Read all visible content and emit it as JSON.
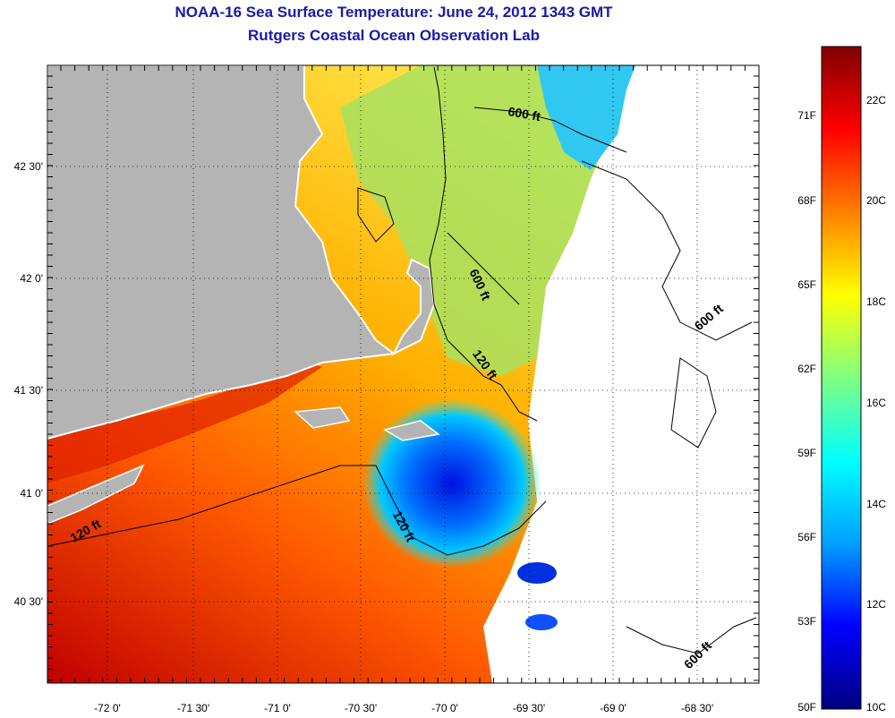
{
  "title_line1": "NOAA-16 Sea Surface Temperature:  June 24, 2012 1343 GMT",
  "title_line2": "Rutgers Coastal Ocean Observation Lab",
  "map": {
    "lon_ticks": [
      "-72 0'",
      "-71 30'",
      "-71 0'",
      "-70 30'",
      "-70 0'",
      "-69 30'",
      "-69 0'",
      "-68 30'"
    ],
    "lat_ticks": [
      "42 30'",
      "42 0'",
      "41 30'",
      "41 0'",
      "40 30'"
    ],
    "contours": [
      {
        "label": "600 ft",
        "rotate": 10
      },
      {
        "label": "600 ft",
        "rotate": 65
      },
      {
        "label": "600 ft",
        "rotate": -40
      },
      {
        "label": "120 ft",
        "rotate": 55
      },
      {
        "label": "120 ft",
        "rotate": 62
      },
      {
        "label": "120 ft",
        "rotate": -30
      },
      {
        "label": "600 ft",
        "rotate": -45
      }
    ],
    "colors": {
      "land": "#b4b4b4",
      "cloud": "#ffffff",
      "coast": "#000000"
    }
  },
  "colorbar": {
    "fahrenheit": [
      "71F",
      "68F",
      "65F",
      "62F",
      "59F",
      "56F",
      "53F",
      "50F"
    ],
    "celsius": [
      "22C",
      "20C",
      "18C",
      "16C",
      "14C",
      "12C",
      "10C"
    ],
    "stops": [
      "#000080",
      "#0000ff",
      "#00a0ff",
      "#00ffff",
      "#80ff80",
      "#ffff00",
      "#ff8000",
      "#ff0000",
      "#800000"
    ]
  }
}
